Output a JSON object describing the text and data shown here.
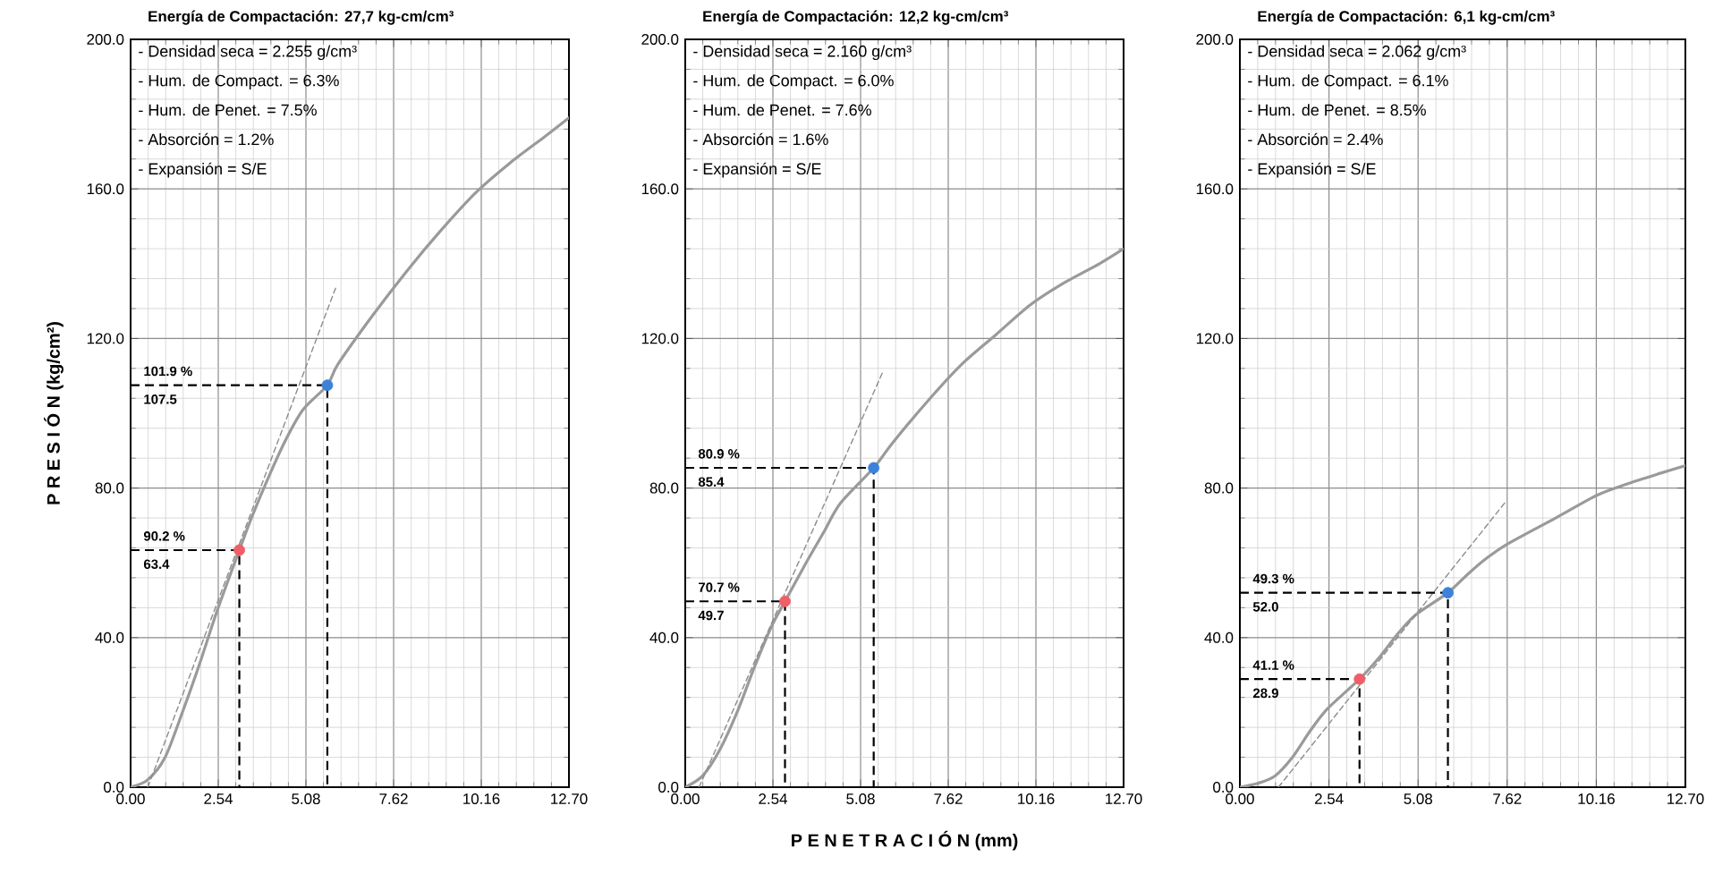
{
  "chart_data": [
    {
      "type": "line",
      "title": "Energía de Compactación: 27,7 kg-cm/cm³",
      "ylabel": "P R E S I Ó N   (kg/cm²)",
      "xlim": [
        0,
        12.7
      ],
      "ylim": [
        0,
        200
      ],
      "xticks": [
        {
          "value": 0,
          "label": "0.00"
        },
        {
          "value": 2.54,
          "label": "2.54"
        },
        {
          "value": 5.08,
          "label": "5.08"
        },
        {
          "value": 7.62,
          "label": "7.62"
        },
        {
          "value": 10.16,
          "label": "10.16"
        },
        {
          "value": 12.7,
          "label": "12.70"
        }
      ],
      "yticks": [
        {
          "value": 0,
          "label": "0.0"
        },
        {
          "value": 40,
          "label": "40.0"
        },
        {
          "value": 80,
          "label": "80.0"
        },
        {
          "value": 120,
          "label": "120.0"
        },
        {
          "value": 160,
          "label": "160.0"
        },
        {
          "value": 200,
          "label": "200.0"
        }
      ],
      "grid": true,
      "annotations": [
        "- Densidad seca = 2.255 g/cm³",
        "- Hum. de Compact. = 6.3%",
        "- Hum. de Penet. = 7.5%",
        "- Absorción = 1.2%",
        "- Expansión = S/E",
        "90.2 %",
        "63.4",
        "101.9 %",
        "107.5"
      ],
      "series": [
        {
          "color": "#9a9a9a",
          "x": [
            0,
            0.5,
            1,
            1.5,
            2,
            2.5,
            3.15,
            3.5,
            4,
            4.5,
            5,
            5.7,
            6,
            7,
            8,
            9,
            10,
            11,
            12,
            12.7
          ],
          "values": [
            0,
            2,
            8,
            20,
            33,
            47,
            63.4,
            72,
            83,
            93,
            101,
            107.5,
            113,
            126,
            138,
            149,
            159,
            167,
            174,
            179
          ]
        },
        {
          "type": "line",
          "line_style": "dashed",
          "color": "#8c8c8c",
          "x": [
            0.5,
            5.96
          ],
          "values": [
            0,
            134
          ]
        },
        {
          "type": "scatter",
          "marker": "circle",
          "colors": [
            "#ef5f68",
            "#3b82d8"
          ],
          "x": [
            3.15,
            5.7
          ],
          "values": [
            63.4,
            107.5
          ]
        }
      ]
    },
    {
      "type": "line",
      "title": "Energía de Compactación: 12,2 kg-cm/cm³",
      "xlabel": "P E N E T R A C I Ó N   (mm)",
      "xlim": [
        0,
        12.7
      ],
      "ylim": [
        0,
        200
      ],
      "xticks": [
        {
          "value": 0,
          "label": "0.00"
        },
        {
          "value": 2.54,
          "label": "2.54"
        },
        {
          "value": 5.08,
          "label": "5.08"
        },
        {
          "value": 7.62,
          "label": "7.62"
        },
        {
          "value": 10.16,
          "label": "10.16"
        },
        {
          "value": 12.7,
          "label": "12.70"
        }
      ],
      "yticks": [
        {
          "value": 0,
          "label": "0.0"
        },
        {
          "value": 40,
          "label": "40.0"
        },
        {
          "value": 80,
          "label": "80.0"
        },
        {
          "value": 120,
          "label": "120.0"
        },
        {
          "value": 160,
          "label": "160.0"
        },
        {
          "value": 200,
          "label": "200.0"
        }
      ],
      "grid": true,
      "annotations": [
        "- Densidad seca = 2.160 g/cm³",
        "- Hum. de Compact. = 6.0%",
        "- Hum. de Penet. = 7.6%",
        "- Absorción = 1.6%",
        "- Expansión = S/E",
        "70.7 %",
        "49.7",
        "80.9 %",
        "85.4"
      ],
      "series": [
        {
          "color": "#9a9a9a",
          "x": [
            0,
            0.5,
            1,
            1.5,
            2,
            2.5,
            2.89,
            3.5,
            4,
            4.5,
            5.46,
            6,
            7,
            8,
            9,
            10,
            11,
            12,
            12.7
          ],
          "values": [
            0,
            3,
            10,
            20,
            32,
            43,
            49.7,
            60,
            68,
            76,
            85.4,
            92,
            103,
            113,
            121,
            129,
            135,
            140,
            144
          ]
        },
        {
          "type": "line",
          "line_style": "dashed",
          "color": "#8c8c8c",
          "x": [
            0.4,
            5.72
          ],
          "values": [
            0,
            111
          ]
        },
        {
          "type": "scatter",
          "marker": "circle",
          "colors": [
            "#ef5f68",
            "#3b82d8"
          ],
          "x": [
            2.89,
            5.46
          ],
          "values": [
            49.7,
            85.4
          ]
        }
      ]
    },
    {
      "type": "line",
      "title": "Energía de Compactación: 6,1 kg-cm/cm³",
      "xlim": [
        0,
        12.7
      ],
      "ylim": [
        0,
        200
      ],
      "xticks": [
        {
          "value": 0,
          "label": "0.00"
        },
        {
          "value": 2.54,
          "label": "2.54"
        },
        {
          "value": 5.08,
          "label": "5.08"
        },
        {
          "value": 7.62,
          "label": "7.62"
        },
        {
          "value": 10.16,
          "label": "10.16"
        },
        {
          "value": 12.7,
          "label": "12.70"
        }
      ],
      "yticks": [
        {
          "value": 0,
          "label": "0.0"
        },
        {
          "value": 40,
          "label": "40.0"
        },
        {
          "value": 80,
          "label": "80.0"
        },
        {
          "value": 120,
          "label": "120.0"
        },
        {
          "value": 160,
          "label": "160.0"
        },
        {
          "value": 200,
          "label": "200.0"
        }
      ],
      "grid": true,
      "annotations": [
        "- Densidad seca = 2.062 g/cm³",
        "- Hum. de Compact. = 6.1%",
        "- Hum. de Penet. = 8.5%",
        "- Absorción = 2.4%",
        "- Expansión = S/E",
        "41.1 %",
        "28.9",
        "49.3 %",
        "52.0"
      ],
      "series": [
        {
          "color": "#9a9a9a",
          "x": [
            0,
            0.5,
            1,
            1.5,
            2,
            2.5,
            3.41,
            4,
            4.5,
            5,
            5.93,
            6.5,
            7,
            7.62,
            9,
            10.16,
            11,
            12,
            12.7
          ],
          "values": [
            0,
            1,
            3,
            8,
            15,
            21,
            28.9,
            35,
            41,
            46,
            52.0,
            57,
            61,
            65,
            72,
            78,
            81,
            84,
            86
          ]
        },
        {
          "type": "line",
          "line_style": "dashed",
          "color": "#8c8c8c",
          "x": [
            1.1,
            7.59
          ],
          "values": [
            0,
            76.5
          ]
        },
        {
          "type": "scatter",
          "marker": "circle",
          "colors": [
            "#ef5f68",
            "#3b82d8"
          ],
          "x": [
            3.41,
            5.93
          ],
          "values": [
            28.9,
            52.0
          ]
        }
      ]
    }
  ]
}
